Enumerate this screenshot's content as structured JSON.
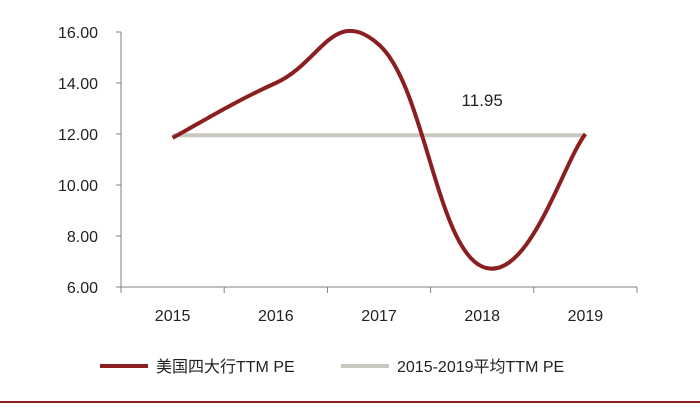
{
  "chart_data": {
    "type": "line",
    "categories": [
      "2015",
      "2016",
      "2017",
      "2018",
      "2019"
    ],
    "ylim": [
      6,
      16
    ],
    "yticks": [
      "6.00",
      "8.00",
      "10.00",
      "12.00",
      "14.00",
      "16.00"
    ],
    "series": [
      {
        "name": "美国四大行TTM PE",
        "color": "#8B1F1F",
        "values": [
          11.85,
          14.0,
          15.5,
          6.8,
          12.0
        ]
      },
      {
        "name": "2015-2019平均TTM PE",
        "color": "#C9C7C0",
        "values": [
          11.95,
          11.95,
          11.95,
          11.95,
          11.95
        ]
      }
    ],
    "annotations": [
      {
        "text": "11.95",
        "x": "2018",
        "y": 13.1
      }
    ],
    "legend_position": "bottom",
    "grid": false
  },
  "colors": {
    "axis": "#7f7f7f",
    "footer_rule": "#8B1F1F"
  }
}
